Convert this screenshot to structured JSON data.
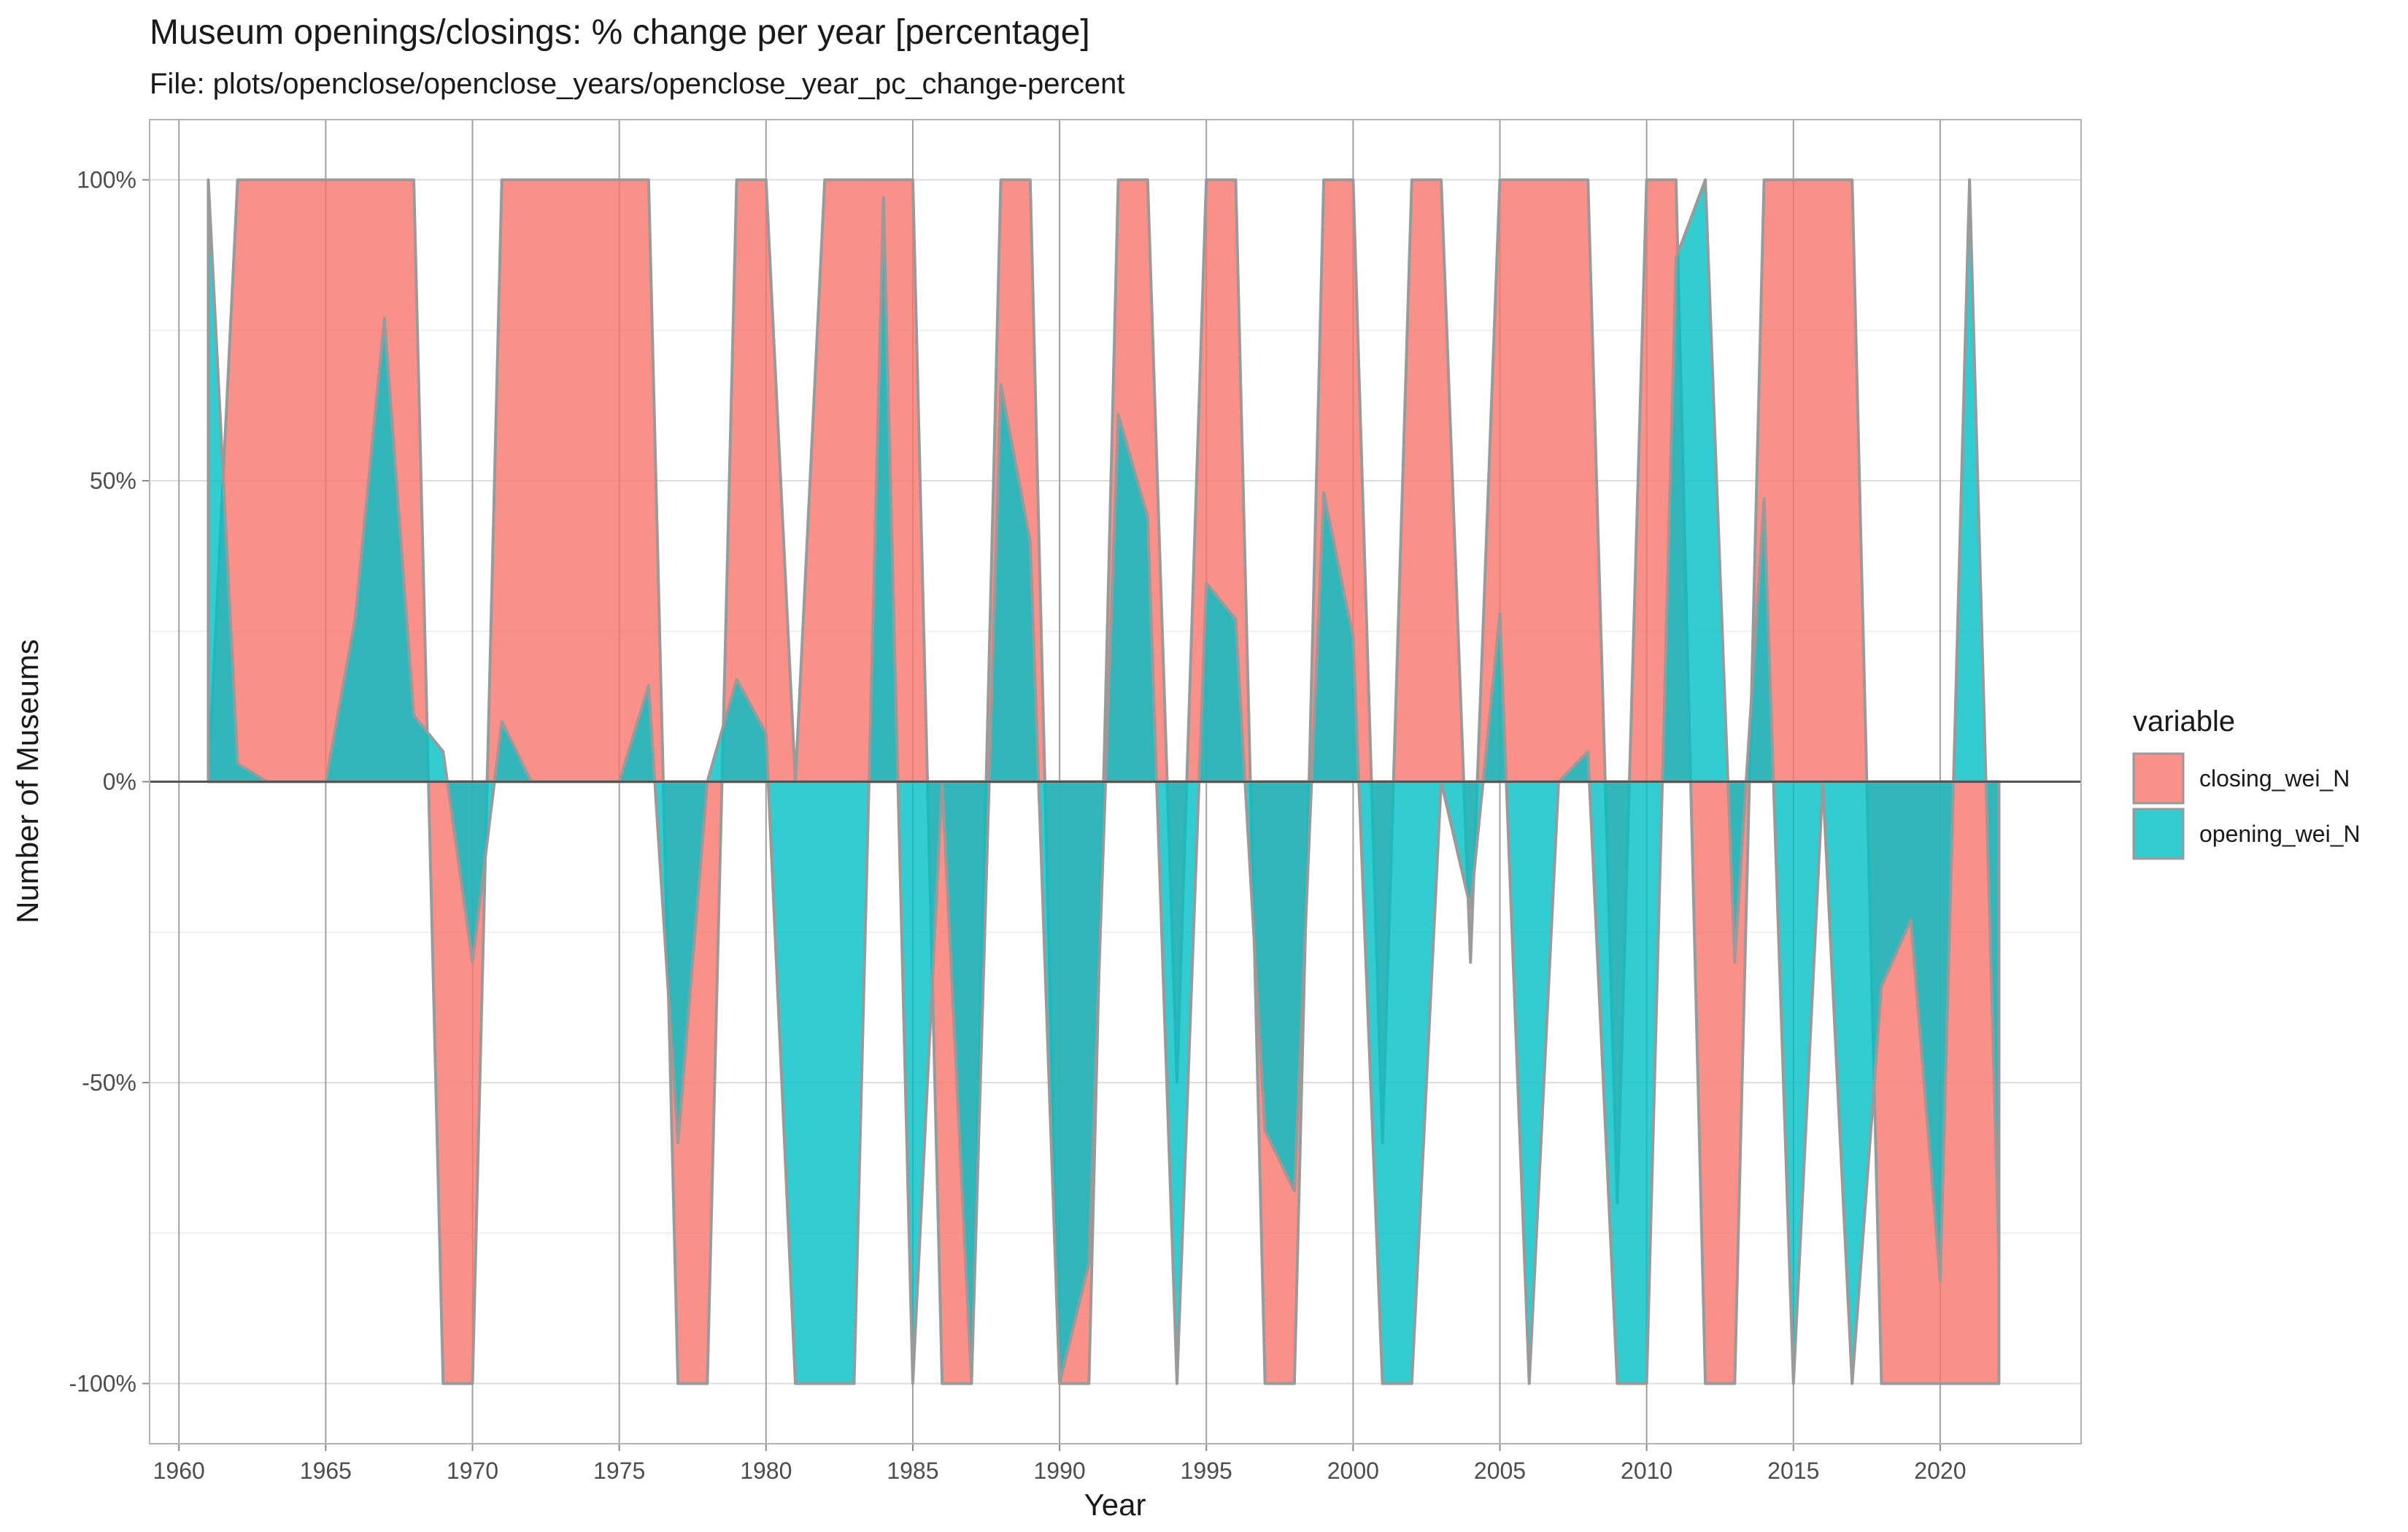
{
  "chart_data": {
    "type": "area",
    "title": "Museum openings/closings: % change per year [percentage]",
    "subtitle": "File: plots/openclose/openclose_years/openclose_year_pc_change-percent",
    "xlabel": "Year",
    "ylabel": "Number of Museums",
    "xlim": [
      1959,
      2024.8
    ],
    "ylim": [
      -110,
      110
    ],
    "x_ticks": [
      1960,
      1965,
      1970,
      1975,
      1980,
      1985,
      1990,
      1995,
      2000,
      2005,
      2010,
      2015,
      2020
    ],
    "y_ticks": [
      -100,
      -50,
      0,
      50,
      100
    ],
    "y_tick_labels": [
      "-100%",
      "-50%",
      "0%",
      "50%",
      "100%"
    ],
    "grid": true,
    "legend_title": "variable",
    "legend_position": "right",
    "colors": {
      "closing_wei_N": "#f8766d",
      "opening_wei_N": "#00bfc4",
      "outline": "#9a9a9a",
      "zero_line": "#555555"
    },
    "x": [
      1961,
      1962,
      1963,
      1964,
      1965,
      1966,
      1967,
      1968,
      1969,
      1970,
      1971,
      1972,
      1973,
      1974,
      1975,
      1976,
      1977,
      1978,
      1979,
      1980,
      1981,
      1982,
      1983,
      1984,
      1985,
      1986,
      1987,
      1988,
      1989,
      1990,
      1991,
      1992,
      1993,
      1994,
      1995,
      1996,
      1997,
      1998,
      1999,
      2000,
      2001,
      2002,
      2003,
      2004,
      2005,
      2006,
      2007,
      2008,
      2009,
      2010,
      2011,
      2012,
      2013,
      2014,
      2015,
      2016,
      2017,
      2018,
      2019,
      2020,
      2021,
      2022
    ],
    "series": [
      {
        "name": "opening_wei_N",
        "values": [
          100,
          3,
          0,
          0,
          0,
          27,
          77,
          11,
          5,
          -30,
          10,
          0,
          0,
          0,
          0,
          16,
          -60,
          0,
          17,
          8,
          -100,
          -100,
          -100,
          97,
          -100,
          0,
          -100,
          66,
          40,
          -100,
          -80,
          61,
          44,
          -100,
          33,
          27,
          -58,
          -68,
          48,
          24,
          -100,
          -100,
          0,
          -21,
          28,
          -100,
          0,
          5,
          -100,
          -100,
          87,
          100,
          -30,
          47,
          -100,
          0,
          -100,
          -34,
          -23,
          -83,
          100,
          -79
        ]
      },
      {
        "name": "closing_wei_N",
        "values": [
          0,
          100,
          100,
          100,
          100,
          100,
          100,
          100,
          -100,
          -100,
          100,
          100,
          100,
          100,
          100,
          100,
          -100,
          -100,
          100,
          100,
          0,
          100,
          100,
          100,
          100,
          -100,
          -100,
          100,
          100,
          -100,
          -100,
          100,
          100,
          -50,
          100,
          100,
          -100,
          -100,
          100,
          100,
          -60,
          100,
          100,
          -30,
          100,
          100,
          100,
          100,
          -70,
          100,
          100,
          -100,
          -100,
          100,
          100,
          100,
          100,
          -100,
          -100,
          -100,
          -100,
          -100
        ]
      }
    ]
  }
}
